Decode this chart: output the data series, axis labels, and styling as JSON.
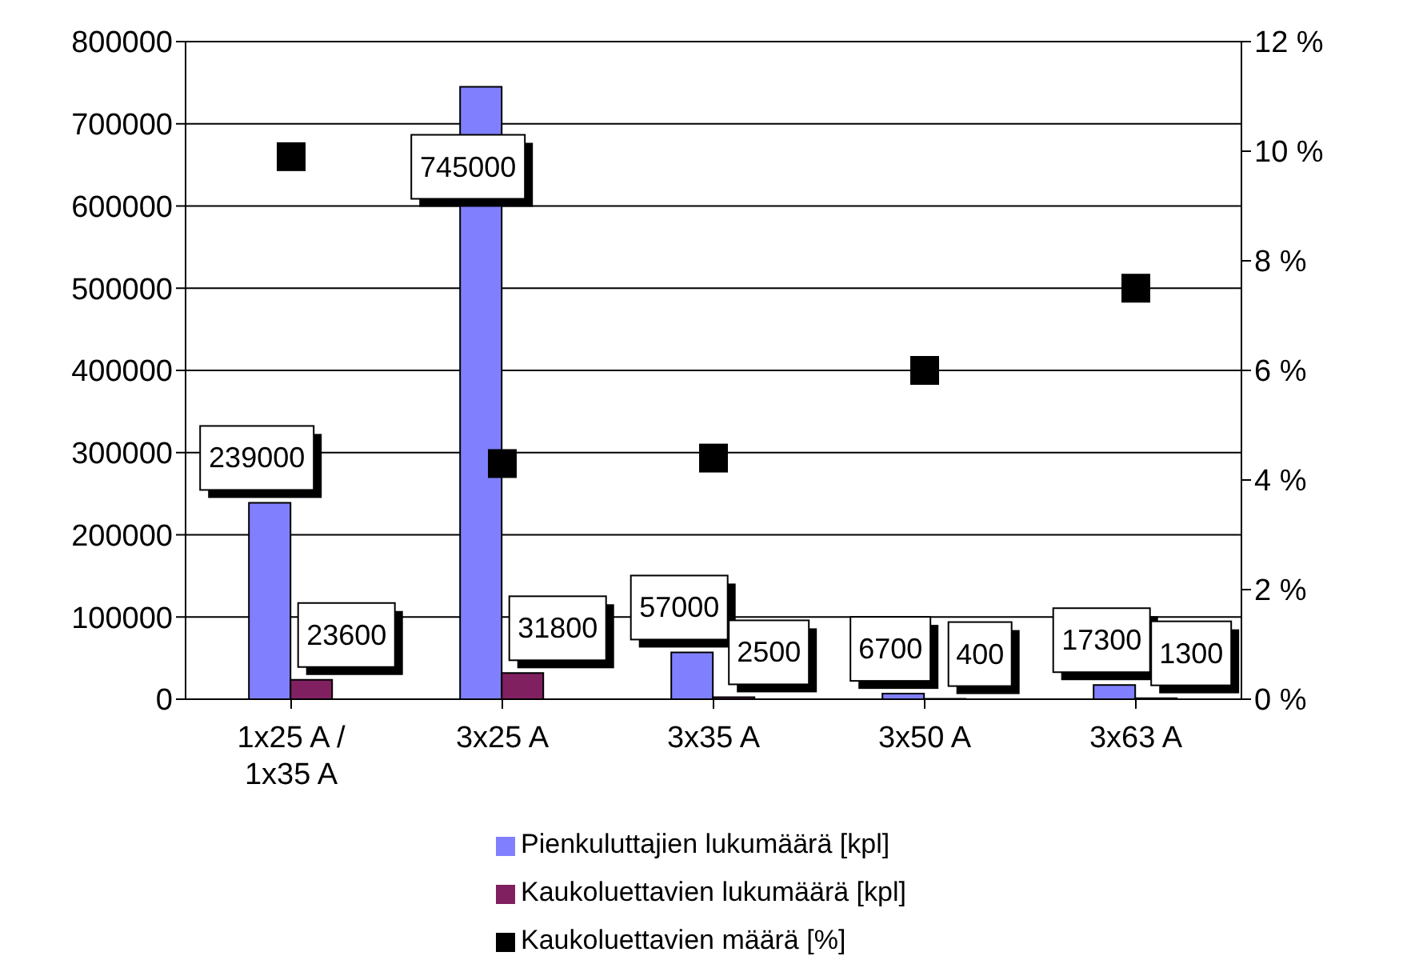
{
  "chart_data": {
    "type": "bar",
    "categories": [
      "1x25 A / 1x35 A",
      "3x25 A",
      "3x35 A",
      "3x50 A",
      "3x63 A"
    ],
    "series": [
      {
        "name": "Pienkuluttajien lukumäärä [kpl]",
        "color": "#8080ff",
        "values": [
          239000,
          745000,
          57000,
          6700,
          17300
        ],
        "value_labels": [
          "239000",
          "745000",
          "57000",
          "6700",
          "17300"
        ]
      },
      {
        "name": "Kaukoluettavien lukumäärä [kpl]",
        "color": "#802060",
        "values": [
          23600,
          31800,
          2500,
          400,
          1300
        ],
        "value_labels": [
          "23600",
          "31800",
          "2500",
          "400",
          "1300"
        ]
      },
      {
        "name": "Kaukoluettavien määrä [%]",
        "type": "scatter",
        "axis": "y2",
        "color": "#000000",
        "marker": "square",
        "values": [
          9.9,
          4.3,
          4.4,
          6.0,
          7.5
        ]
      }
    ],
    "ylim": [
      0,
      800000
    ],
    "yticks": [
      0,
      100000,
      200000,
      300000,
      400000,
      500000,
      600000,
      700000,
      800000
    ],
    "y2lim": [
      0,
      12
    ],
    "y2ticks": [
      {
        "value": 0,
        "label": "0 %"
      },
      {
        "value": 2,
        "label": "2 %"
      },
      {
        "value": 4,
        "label": "4 %"
      },
      {
        "value": 6,
        "label": "6 %"
      },
      {
        "value": 8,
        "label": "8 %"
      },
      {
        "value": 10,
        "label": "10 %"
      },
      {
        "value": 12,
        "label": "12 %"
      }
    ],
    "grid": "y",
    "legend": "bottom"
  }
}
